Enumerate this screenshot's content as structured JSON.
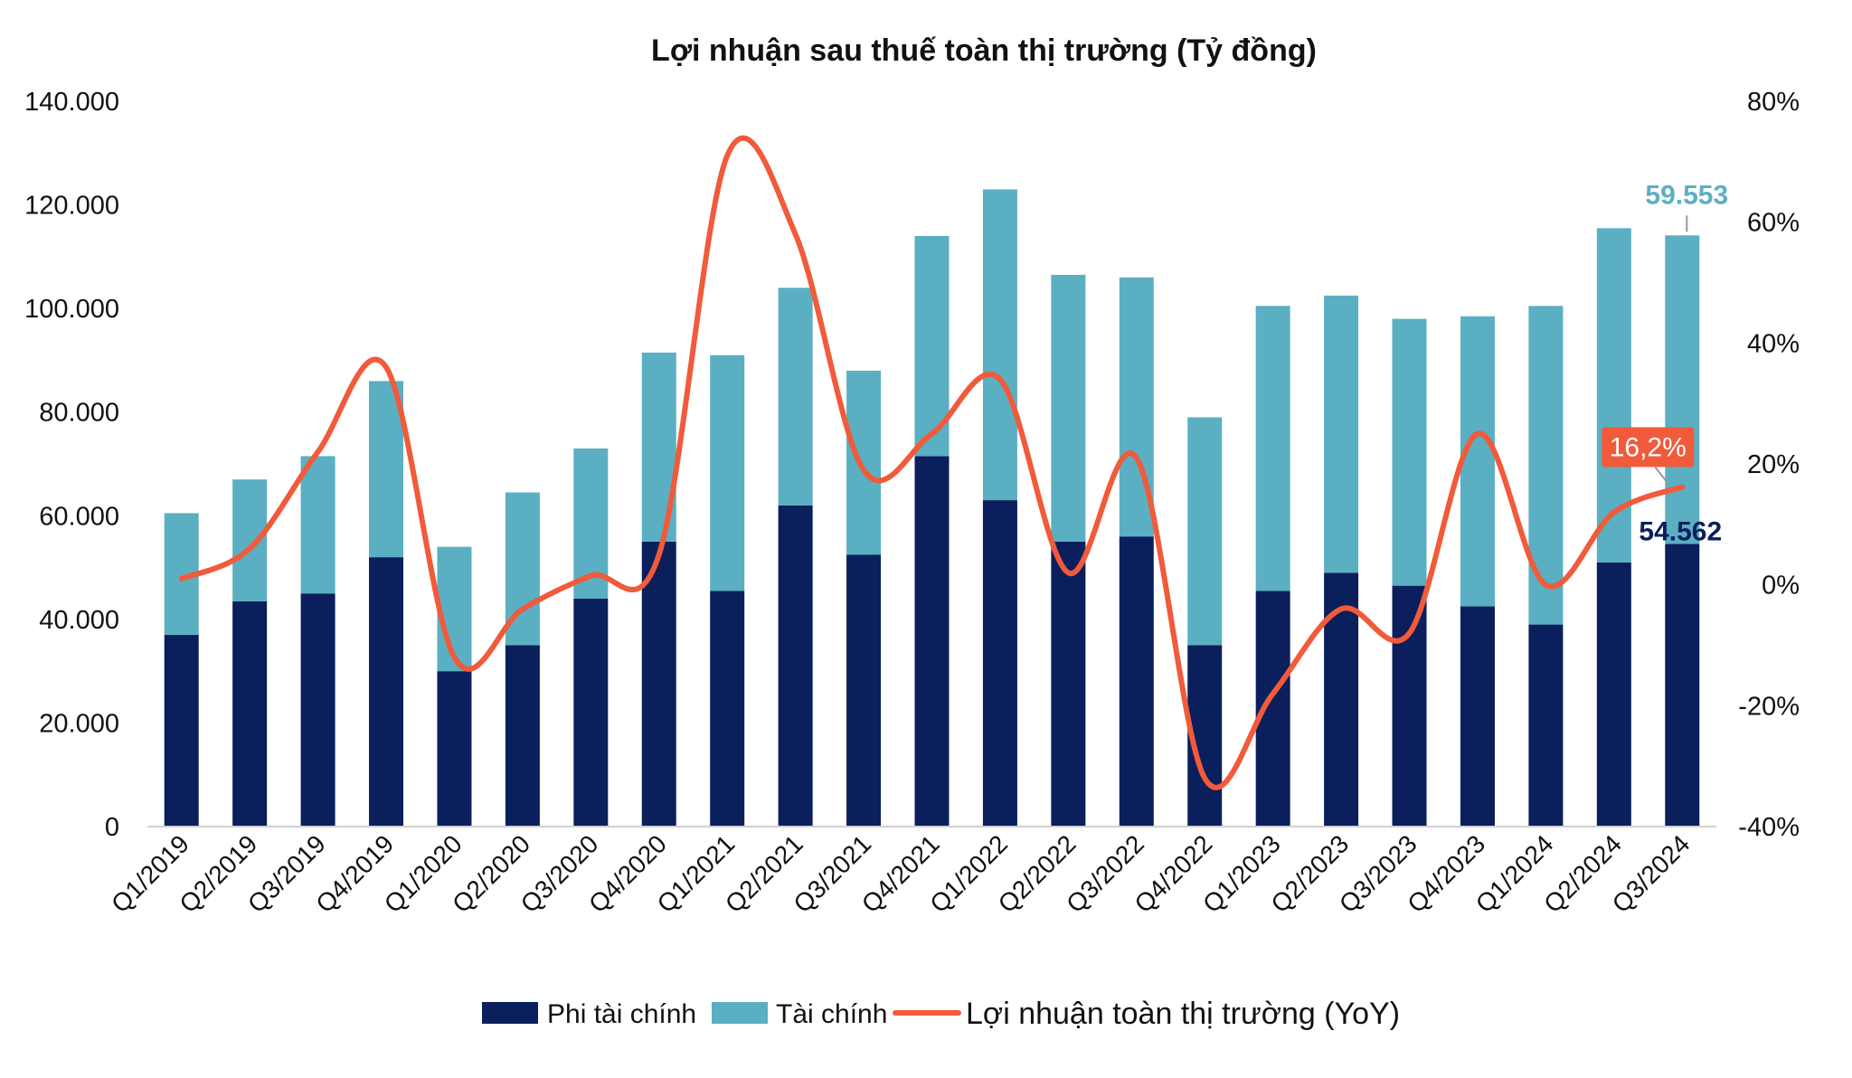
{
  "chart_data": {
    "type": "bar",
    "title": "Lợi nhuận sau thuế toàn thị trường (Tỷ đồng)",
    "categories": [
      "Q1/2019",
      "Q2/2019",
      "Q3/2019",
      "Q4/2019",
      "Q1/2020",
      "Q2/2020",
      "Q3/2020",
      "Q4/2020",
      "Q1/2021",
      "Q2/2021",
      "Q3/2021",
      "Q4/2021",
      "Q1/2022",
      "Q2/2022",
      "Q3/2022",
      "Q4/2022",
      "Q1/2023",
      "Q2/2023",
      "Q3/2023",
      "Q4/2023",
      "Q1/2024",
      "Q2/2024",
      "Q3/2024"
    ],
    "stacked": true,
    "series": [
      {
        "name": "Phi tài chính",
        "axis": "left",
        "color": "#0a1f5c",
        "values": [
          37000,
          43500,
          45000,
          52000,
          30000,
          35000,
          44000,
          55000,
          45500,
          62000,
          52500,
          71500,
          63000,
          55000,
          56000,
          35000,
          45500,
          49000,
          46500,
          42500,
          39000,
          51000,
          54562
        ]
      },
      {
        "name": "Tài chính",
        "axis": "left",
        "color": "#5bafc2",
        "values": [
          23500,
          23500,
          26500,
          34000,
          24000,
          29500,
          29000,
          36500,
          45500,
          42000,
          35500,
          42500,
          60000,
          51500,
          50000,
          44000,
          55000,
          53500,
          51500,
          56000,
          61500,
          64500,
          59553
        ]
      },
      {
        "name": "Lợi nhuận toàn thị trường (YoY)",
        "type": "line",
        "axis": "right",
        "color": "#f15a3a",
        "values": [
          1,
          6,
          22,
          36,
          -12,
          -4,
          1.5,
          5,
          71,
          58,
          19,
          25,
          34,
          2,
          21,
          -32,
          -18,
          -4,
          -8,
          25,
          0,
          12,
          16.2
        ]
      }
    ],
    "left_axis": {
      "ylim": [
        0,
        140000
      ],
      "ticks": [
        "0",
        "20.000",
        "40.000",
        "60.000",
        "80.000",
        "100.000",
        "120.000",
        "140.000"
      ]
    },
    "right_axis": {
      "ylim": [
        -40,
        80
      ],
      "ticks": [
        "-40%",
        "-20%",
        "0%",
        "20%",
        "40%",
        "60%",
        "80%"
      ]
    },
    "annotations": {
      "fin_last": "59.553",
      "nonfin_last": "54.562",
      "yoy_last": "16,2%"
    },
    "legend": "bottom",
    "grid": false
  }
}
